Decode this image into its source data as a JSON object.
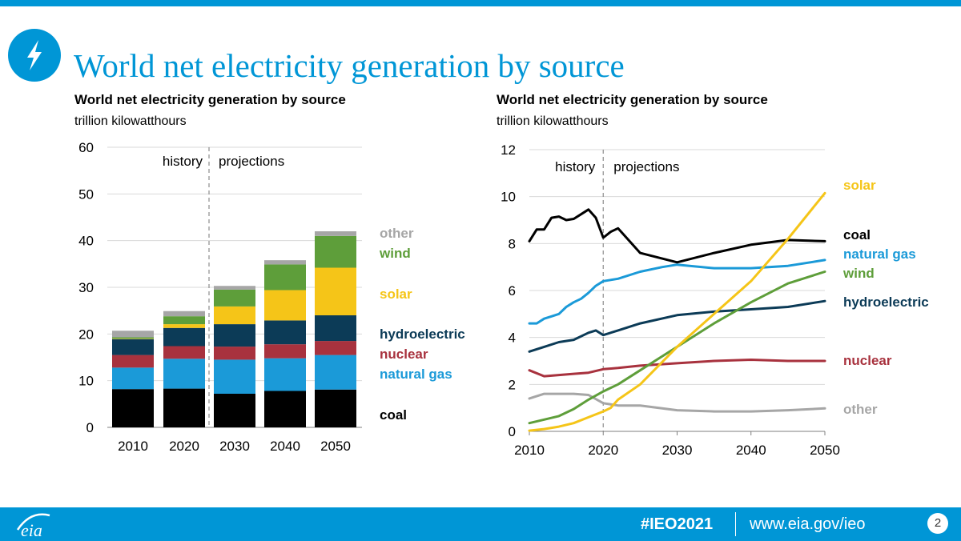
{
  "slide": {
    "title": "World net electricity generation by source",
    "hashtag": "#IEO2021",
    "url": "www.eia.gov/ieo",
    "page_number": "2",
    "logo_text": "eia"
  },
  "colors": {
    "brand": "#0096d6",
    "coal": "#000000",
    "natural_gas": "#1b9ad8",
    "nuclear": "#a8323e",
    "hydroelectric": "#0c3b57",
    "solar": "#f5c518",
    "wind": "#5e9e3a",
    "other": "#a6a6a6"
  },
  "chart_data": [
    {
      "type": "bar",
      "stacked": true,
      "title": "World net electricity generation by source",
      "subtitle": "trillion kilowatthours",
      "categories": [
        "2010",
        "2020",
        "2030",
        "2040",
        "2050"
      ],
      "ylim": [
        0,
        60
      ],
      "yticks": [
        "0",
        "10",
        "20",
        "30",
        "40",
        "50",
        "60"
      ],
      "grid": true,
      "annotations": [
        "history",
        "projections"
      ],
      "series": [
        {
          "name": "coal",
          "values": [
            8.2,
            8.3,
            7.2,
            7.8,
            8.1
          ]
        },
        {
          "name": "natural gas",
          "values": [
            4.6,
            6.4,
            7.3,
            7.0,
            7.4
          ]
        },
        {
          "name": "nuclear",
          "values": [
            2.7,
            2.7,
            2.8,
            3.0,
            3.0
          ]
        },
        {
          "name": "hydroelectric",
          "values": [
            3.4,
            3.9,
            4.8,
            5.1,
            5.5
          ]
        },
        {
          "name": "solar",
          "values": [
            0.1,
            0.8,
            3.8,
            6.5,
            10.2
          ]
        },
        {
          "name": "wind",
          "values": [
            0.3,
            1.7,
            3.6,
            5.5,
            6.8
          ]
        },
        {
          "name": "other",
          "values": [
            1.4,
            1.1,
            0.8,
            0.9,
            1.0
          ]
        }
      ]
    },
    {
      "type": "line",
      "title": "World net electricity generation by source",
      "subtitle": "trillion kilowatthours",
      "xlim": [
        2010,
        2050
      ],
      "xticks": [
        "2010",
        "2020",
        "2030",
        "2040",
        "2050"
      ],
      "ylim": [
        0,
        12
      ],
      "yticks": [
        "0",
        "2",
        "4",
        "6",
        "8",
        "10",
        "12"
      ],
      "grid": true,
      "annotations": [
        "history",
        "projections"
      ],
      "series": [
        {
          "name": "solar",
          "x": [
            2010,
            2012,
            2014,
            2016,
            2018,
            2020,
            2021,
            2022,
            2025,
            2030,
            2035,
            2040,
            2045,
            2050
          ],
          "y": [
            0.03,
            0.1,
            0.2,
            0.35,
            0.6,
            0.85,
            1.0,
            1.35,
            2.0,
            3.6,
            5.0,
            6.4,
            8.2,
            10.15
          ]
        },
        {
          "name": "coal",
          "x": [
            2010,
            2011,
            2012,
            2013,
            2014,
            2015,
            2016,
            2017,
            2018,
            2019,
            2020,
            2021,
            2022,
            2025,
            2030,
            2035,
            2040,
            2045,
            2050
          ],
          "y": [
            8.1,
            8.6,
            8.6,
            9.1,
            9.15,
            9.0,
            9.05,
            9.25,
            9.45,
            9.1,
            8.25,
            8.5,
            8.65,
            7.6,
            7.2,
            7.6,
            7.95,
            8.15,
            8.1
          ]
        },
        {
          "name": "natural gas",
          "x": [
            2010,
            2011,
            2012,
            2013,
            2014,
            2015,
            2016,
            2017,
            2018,
            2019,
            2020,
            2022,
            2025,
            2028,
            2030,
            2035,
            2040,
            2045,
            2050
          ],
          "y": [
            4.6,
            4.6,
            4.8,
            4.9,
            5.0,
            5.3,
            5.5,
            5.65,
            5.9,
            6.2,
            6.4,
            6.5,
            6.8,
            7.0,
            7.1,
            6.95,
            6.95,
            7.05,
            7.3
          ]
        },
        {
          "name": "wind",
          "x": [
            2010,
            2012,
            2014,
            2016,
            2018,
            2020,
            2022,
            2025,
            2030,
            2035,
            2040,
            2045,
            2050
          ],
          "y": [
            0.35,
            0.5,
            0.65,
            0.95,
            1.35,
            1.7,
            2.0,
            2.6,
            3.6,
            4.6,
            5.5,
            6.3,
            6.8
          ]
        },
        {
          "name": "hydroelectric",
          "x": [
            2010,
            2012,
            2014,
            2016,
            2018,
            2019,
            2020,
            2022,
            2025,
            2030,
            2035,
            2040,
            2045,
            2050
          ],
          "y": [
            3.4,
            3.6,
            3.8,
            3.9,
            4.2,
            4.3,
            4.1,
            4.3,
            4.6,
            4.95,
            5.1,
            5.2,
            5.3,
            5.55
          ]
        },
        {
          "name": "nuclear",
          "x": [
            2010,
            2012,
            2014,
            2016,
            2018,
            2020,
            2022,
            2025,
            2030,
            2035,
            2040,
            2045,
            2050
          ],
          "y": [
            2.6,
            2.35,
            2.4,
            2.45,
            2.5,
            2.65,
            2.7,
            2.8,
            2.9,
            3.0,
            3.05,
            3.0,
            3.0
          ]
        },
        {
          "name": "other",
          "x": [
            2010,
            2012,
            2014,
            2016,
            2018,
            2020,
            2022,
            2025,
            2030,
            2035,
            2040,
            2045,
            2050
          ],
          "y": [
            1.4,
            1.6,
            1.6,
            1.6,
            1.55,
            1.2,
            1.1,
            1.1,
            0.9,
            0.85,
            0.85,
            0.9,
            0.98
          ]
        }
      ]
    }
  ]
}
